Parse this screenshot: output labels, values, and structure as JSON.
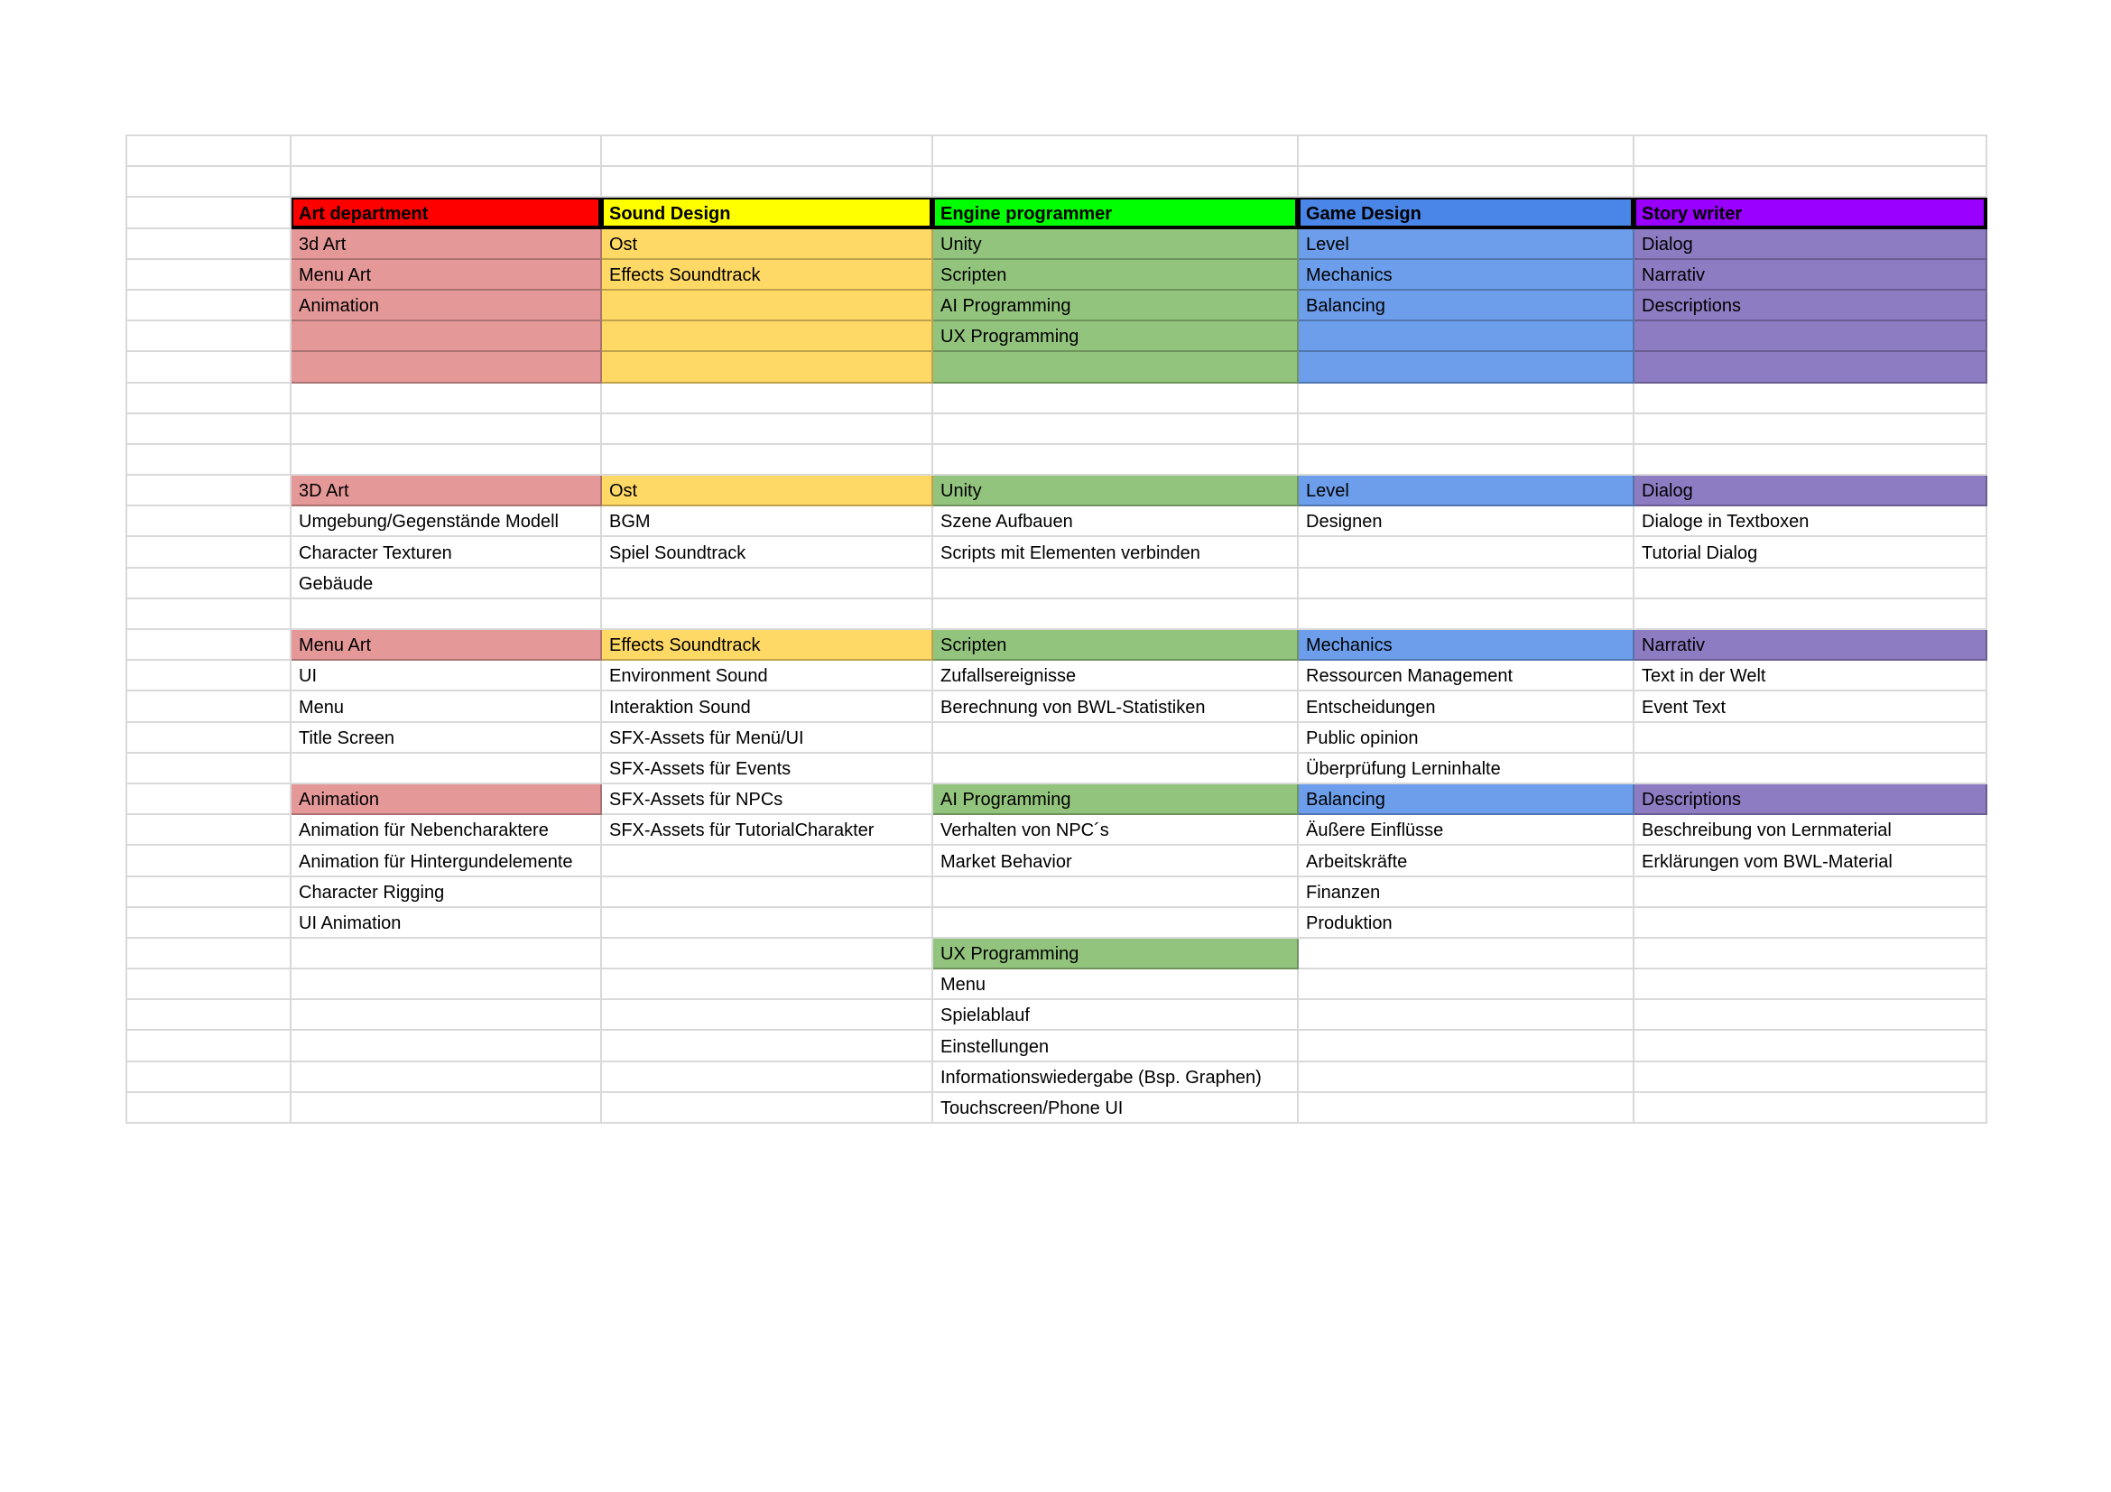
{
  "palette": {
    "header_red": "#FF0000",
    "header_yellow": "#FFFF00",
    "header_green": "#00FF00",
    "header_blue": "#4A86E8",
    "header_purple": "#9900FF",
    "fill_red": "#E59898",
    "fill_yellow": "#FFD966",
    "fill_green": "#93C47D",
    "fill_blue": "#6D9EEB",
    "fill_purple": "#8E7CC3",
    "gridline": "#D9D9D9"
  },
  "grid": {
    "column_headers": [
      "Art department",
      "Sound Design",
      "Engine programmer",
      "Game Design",
      "Story writer"
    ],
    "rows": [
      [
        "",
        "",
        "",
        "",
        "",
        ""
      ],
      [
        "",
        "",
        "",
        "",
        "",
        ""
      ],
      [
        "",
        {
          "t": "Art department",
          "f": "hred"
        },
        {
          "t": "Sound Design",
          "f": "hyellow"
        },
        {
          "t": "Engine programmer",
          "f": "hgreen"
        },
        {
          "t": "Game Design",
          "f": "hblue"
        },
        {
          "t": "Story writer",
          "f": "hpurple"
        }
      ],
      [
        "",
        {
          "t": "3d Art",
          "f": "red"
        },
        {
          "t": "Ost",
          "f": "yellow"
        },
        {
          "t": "Unity",
          "f": "green"
        },
        {
          "t": "Level",
          "f": "blue"
        },
        {
          "t": "Dialog",
          "f": "purple"
        }
      ],
      [
        "",
        {
          "t": "Menu Art",
          "f": "red"
        },
        {
          "t": "Effects Soundtrack",
          "f": "yellow"
        },
        {
          "t": "Scripten",
          "f": "green"
        },
        {
          "t": "Mechanics",
          "f": "blue"
        },
        {
          "t": "Narrativ",
          "f": "purple"
        }
      ],
      [
        "",
        {
          "t": "Animation",
          "f": "red"
        },
        {
          "t": "",
          "f": "yellow"
        },
        {
          "t": "AI Programming",
          "f": "green"
        },
        {
          "t": "Balancing",
          "f": "blue"
        },
        {
          "t": "Descriptions",
          "f": "purple"
        }
      ],
      [
        "",
        {
          "t": "",
          "f": "red"
        },
        {
          "t": "",
          "f": "yellow"
        },
        {
          "t": "UX Programming",
          "f": "green"
        },
        {
          "t": "",
          "f": "blue"
        },
        {
          "t": "",
          "f": "purple"
        }
      ],
      [
        "",
        {
          "t": "",
          "f": "red"
        },
        {
          "t": "",
          "f": "yellow"
        },
        {
          "t": "",
          "f": "green"
        },
        {
          "t": "",
          "f": "blue"
        },
        {
          "t": "",
          "f": "purple"
        }
      ],
      [
        "",
        "",
        "",
        "",
        "",
        ""
      ],
      [
        "",
        "",
        "",
        "",
        "",
        ""
      ],
      [
        "",
        "",
        "",
        "",
        "",
        ""
      ],
      [
        "",
        {
          "t": "3D Art",
          "f": "red"
        },
        {
          "t": "Ost",
          "f": "yellow"
        },
        {
          "t": "Unity",
          "f": "green"
        },
        {
          "t": "Level",
          "f": "blue"
        },
        {
          "t": "Dialog",
          "f": "purple"
        }
      ],
      [
        "",
        "Umgebung/Gegenstände Modell",
        "BGM",
        "Szene Aufbauen",
        "Designen",
        "Dialoge in Textboxen"
      ],
      [
        "",
        "Character Texturen",
        "Spiel Soundtrack",
        "Scripts mit Elementen verbinden",
        "",
        "Tutorial Dialog"
      ],
      [
        "",
        "Gebäude",
        "",
        "",
        "",
        ""
      ],
      [
        "",
        "",
        "",
        "",
        "",
        ""
      ],
      [
        "",
        {
          "t": "Menu Art",
          "f": "red"
        },
        {
          "t": "Effects Soundtrack",
          "f": "yellow"
        },
        {
          "t": "Scripten",
          "f": "green"
        },
        {
          "t": "Mechanics",
          "f": "blue"
        },
        {
          "t": "Narrativ",
          "f": "purple"
        }
      ],
      [
        "",
        "UI",
        "Environment Sound",
        "Zufallsereignisse",
        "Ressourcen Management",
        "Text in der Welt"
      ],
      [
        "",
        "Menu",
        "Interaktion Sound",
        "Berechnung von BWL-Statistiken",
        "Entscheidungen",
        "Event Text"
      ],
      [
        "",
        "Title Screen",
        "SFX-Assets für Menü/UI",
        "",
        "Public opinion",
        ""
      ],
      [
        "",
        "",
        "SFX-Assets für Events",
        "",
        "Überprüfung Lerninhalte",
        ""
      ],
      [
        "",
        {
          "t": "Animation",
          "f": "red"
        },
        "SFX-Assets für NPCs",
        {
          "t": "AI Programming",
          "f": "green"
        },
        {
          "t": "Balancing",
          "f": "blue"
        },
        {
          "t": "Descriptions",
          "f": "purple"
        }
      ],
      [
        "",
        "Animation für Nebencharaktere",
        "SFX-Assets für TutorialCharakter",
        "Verhalten von NPC´s",
        "Äußere Einflüsse",
        "Beschreibung von Lernmaterial"
      ],
      [
        "",
        "Animation für Hintergundelemente",
        "",
        "Market Behavior",
        "Arbeitskräfte",
        "Erklärungen vom BWL-Material"
      ],
      [
        "",
        "Character Rigging",
        "",
        "",
        "Finanzen",
        ""
      ],
      [
        "",
        "UI Animation",
        "",
        "",
        "Produktion",
        ""
      ],
      [
        "",
        "",
        "",
        {
          "t": "UX Programming",
          "f": "green"
        },
        "",
        ""
      ],
      [
        "",
        "",
        "",
        "Menu",
        "",
        ""
      ],
      [
        "",
        "",
        "",
        "Spielablauf",
        "",
        ""
      ],
      [
        "",
        "",
        "",
        "Einstellungen",
        "",
        ""
      ],
      [
        "",
        "",
        "",
        "Informationswiedergabe (Bsp. Graphen)",
        "",
        ""
      ],
      [
        "",
        "",
        "",
        "Touchscreen/Phone UI",
        "",
        ""
      ]
    ]
  }
}
